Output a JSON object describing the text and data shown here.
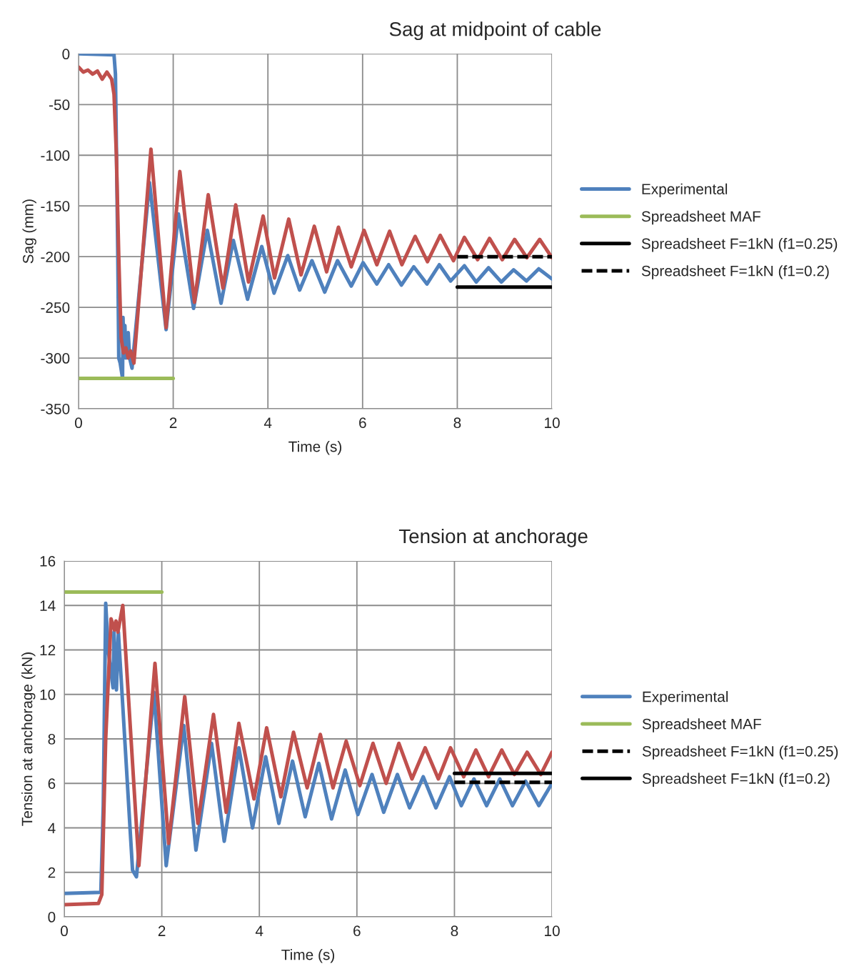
{
  "chart_data": [
    {
      "type": "line",
      "title": "Sag at midpoint of cable",
      "xlabel": "Time (s)",
      "ylabel": "Sag (mm)",
      "xlim": [
        0,
        10
      ],
      "xticks": [
        0,
        2,
        4,
        6,
        8,
        10
      ],
      "ylim": [
        -350,
        0
      ],
      "yticks": [
        -350,
        -300,
        -250,
        -200,
        -150,
        -100,
        -50,
        0
      ],
      "grid": true,
      "legend": "right",
      "marker": "none",
      "series": [
        {
          "name": "Experimental",
          "color": "#4f81bd",
          "line_style": "solid",
          "x": [
            0,
            0.75,
            0.78,
            0.83,
            0.85,
            0.88,
            0.93,
            0.94,
            0.96,
            0.98,
            1.0,
            1.05,
            1.08,
            1.13,
            1.5,
            1.85,
            2.11,
            2.43,
            2.72,
            3.01,
            3.27,
            3.57,
            3.87,
            4.13,
            4.42,
            4.67,
            4.93,
            5.2,
            5.47,
            5.76,
            6.01,
            6.3,
            6.55,
            6.82,
            7.08,
            7.36,
            7.62,
            7.86,
            8.15,
            8.4,
            8.66,
            8.93,
            9.19,
            9.46,
            9.72,
            10
          ],
          "values": [
            0,
            -1,
            -20,
            -200,
            -300,
            -305,
            -320,
            -260,
            -300,
            -268,
            -300,
            -275,
            -300,
            -310,
            -127,
            -272,
            -158,
            -251,
            -174,
            -246,
            -184,
            -242,
            -190,
            -236,
            -199,
            -233,
            -204,
            -235,
            -204,
            -229,
            -206,
            -227,
            -208,
            -228,
            -210,
            -227,
            -208,
            -224,
            -209,
            -225,
            -211,
            -225,
            -213,
            -224,
            -212,
            -222
          ]
        },
        {
          "color": "#c0504d",
          "line_style": "solid",
          "x": [
            0,
            0.1,
            0.2,
            0.3,
            0.4,
            0.5,
            0.6,
            0.7,
            0.75,
            0.8,
            0.85,
            0.9,
            0.95,
            1.0,
            1.05,
            1.1,
            1.17,
            1.53,
            1.85,
            2.14,
            2.45,
            2.74,
            3.05,
            3.32,
            3.59,
            3.9,
            4.14,
            4.44,
            4.7,
            4.98,
            5.24,
            5.49,
            5.76,
            6.03,
            6.3,
            6.57,
            6.83,
            7.11,
            7.37,
            7.64,
            7.92,
            8.15,
            8.43,
            8.68,
            8.95,
            9.21,
            9.47,
            9.74,
            10
          ],
          "values": [
            -13,
            -18,
            -16,
            -20,
            -17,
            -25,
            -18,
            -25,
            -40,
            -100,
            -200,
            -280,
            -295,
            -290,
            -300,
            -293,
            -305,
            -94,
            -270,
            -116,
            -245,
            -139,
            -231,
            -149,
            -225,
            -160,
            -221,
            -163,
            -218,
            -170,
            -215,
            -171,
            -210,
            -174,
            -208,
            -175,
            -208,
            -180,
            -205,
            -179,
            -204,
            -181,
            -203,
            -182,
            -203,
            -183,
            -201,
            -183,
            -201
          ]
        },
        {
          "name": "Spreadsheet MAF",
          "color": "#9bbb59",
          "line_style": "solid",
          "x": [
            0,
            2
          ],
          "values": [
            -320,
            -320
          ]
        },
        {
          "name": "Spreadsheet F=1kN (f1=0.25)",
          "color": "#000000",
          "line_style": "solid",
          "x": [
            8,
            10
          ],
          "values": [
            -230,
            -230
          ]
        },
        {
          "name": "Spreadsheet F=1kN (f1=0.2)",
          "color": "#000000",
          "line_style": "dashed",
          "x": [
            8,
            10
          ],
          "values": [
            -200,
            -200
          ]
        }
      ]
    },
    {
      "type": "line",
      "title": "Tension at anchorage",
      "xlabel": "Time (s)",
      "ylabel": "Tension at anchorage (kN)",
      "xlim": [
        0,
        10
      ],
      "xticks": [
        0,
        2,
        4,
        6,
        8,
        10
      ],
      "ylim": [
        0,
        16
      ],
      "yticks": [
        0,
        2,
        4,
        6,
        8,
        10,
        12,
        14,
        16
      ],
      "grid": true,
      "legend": "right",
      "marker": "none",
      "series": [
        {
          "name": "Experimental",
          "color": "#4f81bd",
          "line_style": "solid",
          "x": [
            0,
            0.75,
            0.8,
            0.85,
            0.9,
            1.0,
            1.02,
            1.07,
            1.11,
            1.4,
            1.48,
            1.84,
            2.09,
            2.45,
            2.7,
            3.02,
            3.28,
            3.58,
            3.86,
            4.13,
            4.4,
            4.68,
            4.94,
            5.22,
            5.48,
            5.76,
            6.02,
            6.31,
            6.55,
            6.83,
            7.08,
            7.36,
            7.62,
            7.9,
            8.14,
            8.4,
            8.66,
            8.93,
            9.19,
            9.46,
            9.73,
            10
          ],
          "values": [
            1.05,
            1.1,
            5,
            14.1,
            12,
            10.3,
            12.8,
            10.2,
            12.8,
            2.1,
            1.8,
            10.1,
            2.3,
            8.6,
            3,
            7.8,
            3.4,
            7.6,
            4,
            7.2,
            4.2,
            7,
            4.5,
            6.9,
            4.4,
            6.6,
            4.6,
            6.4,
            4.7,
            6.4,
            4.9,
            6.3,
            4.9,
            6.3,
            5,
            6.2,
            5,
            6.2,
            5,
            6.1,
            5,
            6
          ]
        },
        {
          "color": "#c0504d",
          "line_style": "solid",
          "x": [
            0,
            0.7,
            0.77,
            0.85,
            0.96,
            1.03,
            1.06,
            1.1,
            1.2,
            1.53,
            1.86,
            2.14,
            2.47,
            2.74,
            3.06,
            3.32,
            3.58,
            3.89,
            4.15,
            4.44,
            4.7,
            4.98,
            5.25,
            5.51,
            5.78,
            6.06,
            6.33,
            6.6,
            6.86,
            7.13,
            7.4,
            7.67,
            7.92,
            8.19,
            8.44,
            8.7,
            8.97,
            9.23,
            9.49,
            9.77,
            10
          ],
          "values": [
            0.55,
            0.6,
            1,
            8,
            13.4,
            12.9,
            13.3,
            12.8,
            14,
            2.3,
            11.4,
            3.3,
            9.9,
            4.2,
            9.1,
            4.7,
            8.7,
            5.3,
            8.5,
            5.4,
            8.3,
            5.8,
            8.2,
            5.8,
            7.9,
            5.9,
            7.8,
            6,
            7.8,
            6.2,
            7.6,
            6.2,
            7.6,
            6.3,
            7.5,
            6.3,
            7.5,
            6.4,
            7.4,
            6.4,
            7.4
          ]
        },
        {
          "name": "Spreadsheet MAF",
          "color": "#9bbb59",
          "line_style": "solid",
          "x": [
            0,
            2
          ],
          "values": [
            14.6,
            14.6
          ]
        },
        {
          "name": "Spreadsheet F=1kN (f1=0.25)",
          "color": "#000000",
          "line_style": "dashed",
          "x": [
            8,
            10
          ],
          "values": [
            6.05,
            6.05
          ]
        },
        {
          "name": "Spreadsheet F=1kN (f1=0.2)",
          "color": "#000000",
          "line_style": "solid",
          "x": [
            8,
            10
          ],
          "values": [
            6.45,
            6.45
          ]
        }
      ]
    }
  ]
}
